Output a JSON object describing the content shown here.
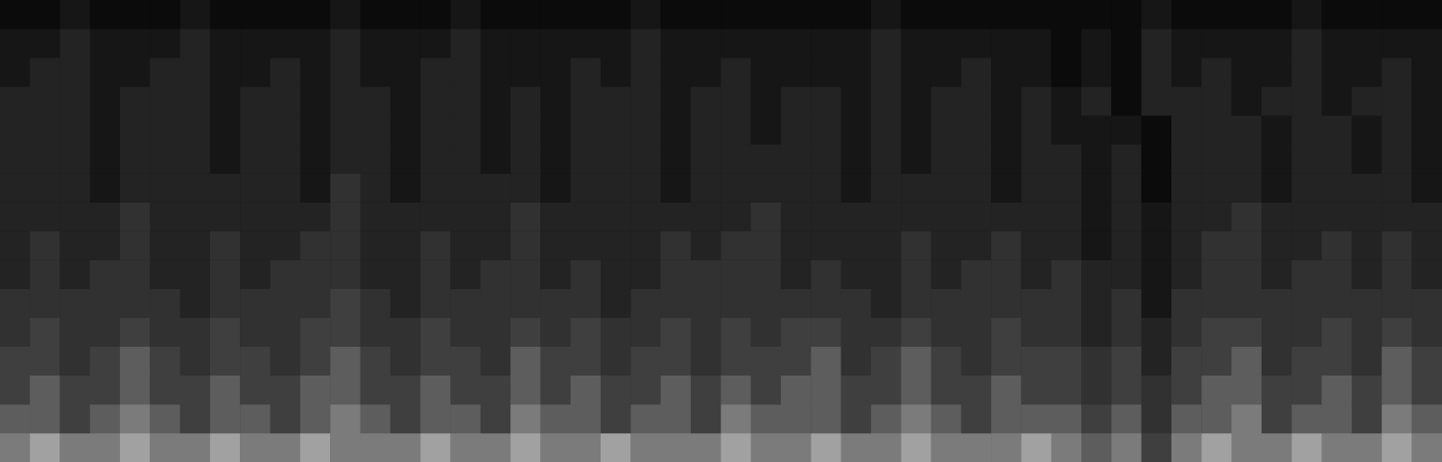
{
  "chart_data": {
    "type": "heatmap",
    "tick_labels": false,
    "grid": false,
    "color_range": [
      0,
      10
    ],
    "cells": [
      [
        7,
        8,
        7,
        7,
        8,
        7,
        7,
        8,
        7,
        7,
        8,
        7,
        7,
        7,
        8,
        7,
        7,
        8,
        7,
        7,
        8,
        7,
        7,
        7,
        8,
        7,
        7,
        8,
        7,
        7,
        8,
        7,
        7,
        7,
        8,
        7,
        6,
        7,
        5,
        7,
        8,
        7,
        7,
        8,
        7,
        7,
        8,
        7
      ],
      [
        6,
        6,
        5,
        6,
        7,
        6,
        5,
        6,
        6,
        5,
        6,
        7,
        6,
        5,
        6,
        6,
        5,
        7,
        6,
        6,
        5,
        6,
        6,
        5,
        7,
        6,
        6,
        6,
        5,
        6,
        7,
        6,
        5,
        6,
        6,
        6,
        5,
        6,
        4,
        6,
        6,
        7,
        5,
        6,
        6,
        5,
        7,
        6
      ],
      [
        5,
        6,
        5,
        5,
        6,
        5,
        5,
        6,
        5,
        5,
        6,
        6,
        5,
        5,
        6,
        5,
        5,
        6,
        5,
        6,
        5,
        5,
        6,
        5,
        6,
        5,
        6,
        6,
        5,
        5,
        6,
        5,
        5,
        6,
        5,
        5,
        4,
        5,
        4,
        5,
        6,
        6,
        5,
        5,
        6,
        5,
        6,
        5
      ],
      [
        5,
        5,
        4,
        5,
        6,
        5,
        4,
        5,
        5,
        4,
        5,
        6,
        5,
        4,
        5,
        5,
        4,
        6,
        5,
        5,
        4,
        5,
        5,
        4,
        5,
        5,
        5,
        6,
        4,
        5,
        6,
        5,
        4,
        5,
        5,
        5,
        4,
        5,
        3,
        5,
        5,
        6,
        4,
        5,
        5,
        4,
        6,
        5
      ],
      [
        4,
        5,
        4,
        4,
        5,
        4,
        4,
        5,
        4,
        4,
        5,
        5,
        4,
        4,
        5,
        4,
        4,
        5,
        4,
        5,
        4,
        4,
        5,
        4,
        5,
        4,
        5,
        5,
        4,
        4,
        5,
        4,
        4,
        5,
        4,
        4,
        3,
        4,
        3,
        4,
        5,
        5,
        4,
        4,
        5,
        4,
        5,
        4
      ],
      [
        4,
        4,
        4,
        4,
        4,
        4,
        3,
        4,
        4,
        4,
        4,
        5,
        4,
        3,
        4,
        4,
        4,
        4,
        4,
        4,
        3,
        4,
        4,
        4,
        4,
        4,
        4,
        4,
        4,
        3,
        4,
        4,
        4,
        4,
        4,
        4,
        3,
        4,
        2,
        4,
        4,
        4,
        4,
        4,
        4,
        4,
        4,
        4
      ],
      [
        3,
        4,
        3,
        4,
        4,
        3,
        3,
        4,
        3,
        4,
        4,
        4,
        3,
        3,
        4,
        3,
        4,
        4,
        3,
        4,
        3,
        3,
        4,
        4,
        4,
        4,
        3,
        4,
        3,
        3,
        4,
        3,
        4,
        4,
        3,
        4,
        3,
        3,
        2,
        3,
        4,
        4,
        3,
        4,
        4,
        3,
        4,
        3
      ],
      [
        3,
        4,
        3,
        3,
        4,
        3,
        3,
        4,
        3,
        3,
        4,
        4,
        3,
        3,
        4,
        3,
        3,
        4,
        3,
        3,
        3,
        3,
        4,
        3,
        4,
        4,
        3,
        3,
        3,
        3,
        4,
        3,
        3,
        4,
        3,
        3,
        2,
        3,
        2,
        3,
        4,
        4,
        3,
        3,
        4,
        3,
        4,
        3
      ],
      [
        3,
        3,
        3,
        3,
        4,
        3,
        3,
        3,
        3,
        3,
        3,
        4,
        3,
        3,
        3,
        3,
        3,
        4,
        3,
        3,
        3,
        3,
        3,
        3,
        3,
        4,
        3,
        3,
        3,
        3,
        3,
        3,
        3,
        3,
        3,
        3,
        2,
        3,
        2,
        3,
        3,
        4,
        3,
        3,
        3,
        3,
        3,
        3
      ],
      [
        3,
        3,
        3,
        2,
        3,
        3,
        3,
        3,
        3,
        3,
        2,
        4,
        3,
        2,
        3,
        3,
        3,
        3,
        2,
        3,
        3,
        3,
        2,
        3,
        3,
        3,
        3,
        3,
        2,
        3,
        3,
        3,
        3,
        2,
        3,
        3,
        2,
        3,
        1,
        3,
        3,
        3,
        2,
        3,
        3,
        3,
        3,
        2
      ],
      [
        3,
        3,
        3,
        2,
        3,
        3,
        3,
        2,
        3,
        3,
        2,
        3,
        3,
        2,
        3,
        3,
        2,
        3,
        2,
        3,
        3,
        3,
        2,
        3,
        3,
        3,
        3,
        3,
        2,
        3,
        2,
        3,
        3,
        2,
        3,
        3,
        2,
        3,
        1,
        3,
        3,
        3,
        2,
        3,
        3,
        2,
        3,
        2
      ],
      [
        3,
        3,
        3,
        2,
        3,
        3,
        3,
        2,
        3,
        3,
        2,
        3,
        3,
        2,
        3,
        3,
        2,
        3,
        2,
        3,
        3,
        3,
        2,
        3,
        3,
        2,
        3,
        3,
        2,
        3,
        2,
        3,
        3,
        2,
        3,
        2,
        2,
        2,
        1,
        3,
        3,
        3,
        2,
        3,
        3,
        2,
        3,
        2
      ],
      [
        3,
        3,
        3,
        2,
        3,
        3,
        3,
        2,
        3,
        3,
        2,
        3,
        3,
        2,
        3,
        3,
        2,
        3,
        2,
        3,
        3,
        3,
        2,
        3,
        3,
        2,
        3,
        3,
        2,
        3,
        2,
        3,
        3,
        2,
        3,
        2,
        3,
        1,
        3,
        3,
        3,
        2,
        3,
        3,
        2,
        3,
        3,
        2
      ],
      [
        2,
        3,
        3,
        2,
        2,
        3,
        3,
        2,
        2,
        3,
        2,
        3,
        2,
        2,
        3,
        3,
        2,
        2,
        2,
        3,
        2,
        3,
        2,
        2,
        3,
        2,
        2,
        2,
        2,
        3,
        2,
        2,
        3,
        2,
        2,
        1,
        2,
        1,
        3,
        2,
        3,
        2,
        2,
        3,
        2,
        2,
        3,
        2
      ],
      [
        2,
        2,
        3,
        2,
        2,
        2,
        3,
        2,
        2,
        2,
        2,
        3,
        2,
        2,
        2,
        3,
        2,
        2,
        2,
        2,
        2,
        3,
        2,
        2,
        2,
        2,
        2,
        2,
        2,
        3,
        2,
        2,
        2,
        2,
        2,
        1,
        2,
        1,
        3,
        2,
        2,
        2,
        2,
        3,
        2,
        2,
        2,
        2
      ],
      [
        1,
        1,
        2,
        1,
        1,
        1,
        2,
        1,
        1,
        1,
        1,
        2,
        1,
        1,
        1,
        2,
        1,
        1,
        1,
        1,
        1,
        2,
        1,
        1,
        1,
        1,
        1,
        1,
        1,
        2,
        1,
        1,
        1,
        1,
        1,
        1,
        1,
        1,
        2,
        1,
        1,
        1,
        1,
        2,
        1,
        1,
        1,
        1
      ]
    ]
  }
}
